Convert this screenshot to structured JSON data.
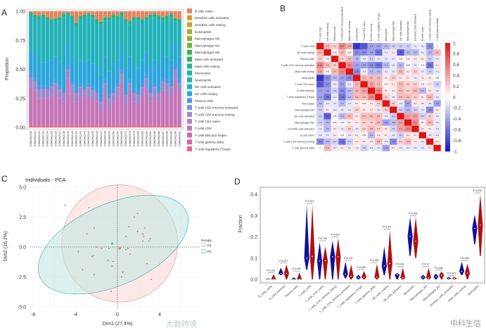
{
  "chart_data": [
    {
      "panel": "A",
      "type": "bar",
      "stacked": true,
      "ylabel": "Proportion",
      "ylim": [
        0,
        1
      ],
      "yticks": [
        "0.00",
        "0.25",
        "0.50",
        "0.75",
        "1.00"
      ],
      "categories": [
        "GSM1902130",
        "GSM1902131",
        "GSM1902132",
        "GSM1902133",
        "GSM1902134",
        "GSM1902135",
        "GSM1902136",
        "GSM1902137",
        "GSM1902138",
        "GSM1902139",
        "GSM1902140",
        "GSM1902141",
        "GSM1902142",
        "GSM1902143",
        "GSM1902144",
        "GSM1902145",
        "GSM1902146",
        "GSM1902147",
        "GSM1902148",
        "GSM1902149",
        "GSM1902150",
        "GSM1902151",
        "GSM1902155",
        "GSM1902177",
        "GSM1902178",
        "GSM1902179",
        "GSM1902180",
        "GSM1902182",
        "GSM1902183",
        "GSM1902184",
        "GSM1902185",
        "GSM1902186",
        "GSM1902187",
        "GSM1902188",
        "GSM1902189",
        "GSM1902190",
        "GSM1902191"
      ],
      "legend": [
        {
          "name": "B cells naive",
          "color": "#E8845C"
        },
        {
          "name": "Dendritic cells activated",
          "color": "#D99A2B"
        },
        {
          "name": "Dendritic cells resting",
          "color": "#C9A229"
        },
        {
          "name": "Eosinophils",
          "color": "#B5A92E"
        },
        {
          "name": "Macrophages M0",
          "color": "#98B033"
        },
        {
          "name": "Macrophages M1",
          "color": "#6FB63E"
        },
        {
          "name": "Macrophages M2",
          "color": "#3BB54A"
        },
        {
          "name": "Mast cells activated",
          "color": "#2BB572"
        },
        {
          "name": "Mast cells resting",
          "color": "#22B48E"
        },
        {
          "name": "Monocytes",
          "color": "#20B4A5"
        },
        {
          "name": "Neutrophils",
          "color": "#1FB3BA"
        },
        {
          "name": "NK cells activated",
          "color": "#22AED0"
        },
        {
          "name": "NK cells resting",
          "color": "#2AA5DE"
        },
        {
          "name": "Plasma cells",
          "color": "#4A9AE0"
        },
        {
          "name": "T cells CD4 memory activated",
          "color": "#7F92D8"
        },
        {
          "name": "T cells CD4 memory resting",
          "color": "#9C88CC"
        },
        {
          "name": "T cells CD4 naive",
          "color": "#B47FC4"
        },
        {
          "name": "T cells CD8",
          "color": "#C675BA"
        },
        {
          "name": "T cells follicular helper",
          "color": "#D46AAE"
        },
        {
          "name": "T cells gamma delta",
          "color": "#E063A0"
        },
        {
          "name": "T cells regulatory (Tregs)",
          "color": "#E8678E"
        }
      ],
      "series": [
        {
          "name": "T cells regulatory (Tregs)",
          "values": 0.02
        },
        {
          "name": "T cells CD8",
          "values": [
            0.33,
            0.3,
            0.23,
            0.23,
            0.23,
            0.25,
            0.28,
            0.23,
            0.2,
            0.4,
            0.27,
            0.2,
            0.25,
            0.23,
            0.25,
            0.22,
            0.2,
            0.12,
            0.28,
            0.15,
            0.2,
            0.25,
            0.37,
            0.18,
            0.28,
            0.2,
            0.18,
            0.25,
            0.32,
            0.2,
            0.25,
            0.2,
            0.3,
            0.28,
            0.25,
            0.4,
            0.28
          ]
        },
        {
          "name": "T cells CD4 memory resting",
          "values": 0.08
        },
        {
          "name": "Plasma cells",
          "values": 0.03
        },
        {
          "name": "NK cells resting",
          "values": 0.2
        },
        {
          "name": "Neutrophils",
          "values": [
            0.3,
            0.31,
            0.37,
            0.38,
            0.36,
            0.32,
            0.3,
            0.36,
            0.42,
            0.23,
            0.33,
            0.34,
            0.35,
            0.38,
            0.37,
            0.39,
            0.37,
            0.43,
            0.31,
            0.44,
            0.41,
            0.35,
            0.26,
            0.39,
            0.28,
            0.39,
            0.41,
            0.32,
            0.27,
            0.41,
            0.37,
            0.4,
            0.29,
            0.32,
            0.37,
            0.18,
            0.29
          ]
        },
        {
          "name": "Mast cells resting",
          "values": 0.03
        },
        {
          "name": "B cells naive",
          "values": [
            0.01,
            0.03,
            0.04,
            0.03,
            0.05,
            0.07,
            0.06,
            0.05,
            0.02,
            0.01,
            0.04,
            0.1,
            0.04,
            0.03,
            0.02,
            0.03,
            0.07,
            0.09,
            0.05,
            0.05,
            0.03,
            0.04,
            0.01,
            0.07,
            0.08,
            0.05,
            0.05,
            0.07,
            0.05,
            0.03,
            0.02,
            0.04,
            0.05,
            0.04,
            0.02,
            0.06,
            0.07
          ]
        }
      ]
    },
    {
      "panel": "B",
      "type": "heatmap",
      "zlim": [
        -1,
        1
      ],
      "colorbar_ticks": [
        "1",
        "0.8",
        "0.6",
        "0.4",
        "0.2",
        "0",
        "-0.2",
        "-0.4",
        "-0.6",
        "-0.8",
        "-1"
      ],
      "labels": [
        "T Cells CD8",
        "NK cells resting",
        "Plasma cells",
        "T cells CD4 memory activated",
        "Mast cells resting",
        "Neutrophils",
        "T cells CD4 naive",
        "B cells memory",
        "T cells regulatory (Tregs)",
        "Monocytes",
        "Macrophages M0",
        "NK cells activated",
        "Macrophages M2",
        "Dendritic cells activated",
        "B cells naive",
        "T cells CD4 memory resting",
        "T cells gamma delta"
      ],
      "colors": {
        "low": "#1414C8",
        "mid": "#FFFFFF",
        "high": "#E01414"
      },
      "matrix": [
        [
          1,
          0.3,
          0.2,
          0.52,
          0.35,
          -0.85,
          -0.7,
          -0.4,
          -0.4,
          -0.3,
          -0.2,
          -0.2,
          -0.2,
          -0.1,
          -0.1,
          -0.5,
          0
        ],
        [
          0.3,
          1,
          0.05,
          0.3,
          0.05,
          -0.5,
          -0.5,
          -0.4,
          -0.6,
          -0.1,
          0.1,
          -0.7,
          -0.3,
          -0.3,
          -0.1,
          -0.3,
          0.3
        ],
        [
          0.2,
          0.05,
          1,
          0.2,
          0.3,
          -0.3,
          -0.1,
          -0.2,
          -0.1,
          -0.1,
          -0.1,
          0.05,
          0.05,
          0.1,
          0.1,
          -0.2,
          -0.1
        ],
        [
          0.52,
          0.3,
          0.2,
          1,
          0.5,
          -0.4,
          -0.4,
          -0.5,
          -0.6,
          -0.3,
          -0.1,
          -0.3,
          -0.04,
          -0.1,
          -0.01,
          -0.6,
          0.1
        ],
        [
          0.35,
          0.05,
          0.3,
          0.5,
          1,
          -0.5,
          -0.1,
          -0.3,
          -0.3,
          -0.1,
          -0.1,
          0.3,
          0.1,
          0.2,
          -0.1,
          -0.2,
          -0.1
        ],
        [
          -0.85,
          -0.5,
          -0.3,
          -0.4,
          -0.5,
          1,
          0.3,
          0.3,
          0.3,
          0.1,
          0.2,
          0.1,
          0.1,
          -0.1,
          0.1,
          0.1,
          0.05
        ],
        [
          -0.7,
          -0.5,
          -0.1,
          -0.4,
          -0.1,
          0.3,
          1,
          0.4,
          0.3,
          0.05,
          0.1,
          0.3,
          0.2,
          0.2,
          0.05,
          0.1,
          -0.2
        ],
        [
          -0.4,
          -0.4,
          -0.2,
          -0.5,
          -0.3,
          0.3,
          0.4,
          1,
          0.5,
          0.1,
          0.1,
          0.3,
          0.2,
          0.3,
          -0.3,
          0.1,
          -0.1
        ],
        [
          -0.4,
          -0.6,
          -0.1,
          -0.6,
          -0.3,
          0.3,
          0.3,
          0.5,
          1,
          0.2,
          -0.1,
          0.3,
          0.3,
          0.2,
          0.1,
          0.3,
          -0.1
        ],
        [
          -0.3,
          -0.1,
          -0.1,
          -0.3,
          -0.1,
          0.1,
          0.05,
          0.1,
          0.2,
          1,
          0.2,
          -0.1,
          -0.4,
          0.1,
          0.1,
          -0.1,
          -0.4
        ],
        [
          -0.2,
          0.1,
          -0.1,
          -0.1,
          -0.1,
          0.2,
          0.1,
          0.1,
          -0.1,
          0.2,
          1,
          -0.2,
          -0.3,
          -0.2,
          -0.1,
          -0.5,
          0.1
        ],
        [
          -0.2,
          -0.7,
          0.05,
          -0.3,
          0.3,
          0.1,
          0.3,
          0.3,
          0.3,
          -0.1,
          -0.2,
          1,
          0.4,
          0.4,
          -0.2,
          0.2,
          -0.1
        ],
        [
          -0.2,
          -0.3,
          0.05,
          -0.04,
          0.1,
          0.1,
          0.2,
          0.2,
          0.3,
          -0.4,
          -0.3,
          0.4,
          1,
          0.5,
          0.1,
          0.3,
          -0.1
        ],
        [
          -0.1,
          -0.3,
          0.1,
          -0.1,
          0.2,
          -0.1,
          0.2,
          0.3,
          0.2,
          0.1,
          -0.2,
          0.4,
          0.5,
          1,
          0.1,
          0.1,
          -0.1
        ],
        [
          -0.1,
          -0.1,
          0.1,
          -0.01,
          -0.1,
          0.1,
          0.05,
          -0.3,
          0.1,
          0.1,
          -0.1,
          -0.2,
          0.1,
          0.1,
          1,
          -0.1,
          -0.1
        ],
        [
          -0.5,
          -0.3,
          -0.2,
          -0.6,
          -0.2,
          0.1,
          0.1,
          0.1,
          0.3,
          -0.1,
          -0.5,
          0.2,
          0.3,
          0.1,
          -0.1,
          1,
          0.1
        ],
        [
          0,
          0.3,
          -0.1,
          0.1,
          -0.1,
          0.05,
          -0.2,
          -0.1,
          -0.1,
          -0.4,
          0.1,
          -0.1,
          -0.1,
          -0.1,
          -0.1,
          0.1,
          1
        ]
      ]
    },
    {
      "panel": "C",
      "type": "scatter",
      "title": "Individuals - PCA",
      "xlabel": "Dim1 (27.4%)",
      "ylabel": "Dim2 (16.2%)",
      "xticks": [
        "-8",
        "-4",
        "0",
        "4"
      ],
      "yticks": [
        "5.0",
        "2.5",
        "0.0",
        "-2.5",
        "-5.0"
      ],
      "xlim": [
        -8.3,
        7.8
      ],
      "ylim": [
        -5.2,
        5.2
      ],
      "legend_title": "Groups",
      "groups": [
        {
          "name": "AS",
          "color": "#E8908A",
          "fill": "#F8D6D3",
          "mean": [
            0.2,
            -0.1
          ],
          "ellipse": {
            "center": [
              0.2,
              0.3
            ],
            "semi_axes": [
              5.5,
              4.9
            ],
            "angle": -10
          },
          "points": [
            [
              -5.0,
              3.5
            ],
            [
              -2.7,
              3.3
            ],
            [
              1.9,
              2.8
            ],
            [
              1.6,
              2.5
            ],
            [
              -2.2,
              1.6
            ],
            [
              1.1,
              1.7
            ],
            [
              2.6,
              1.6
            ],
            [
              1.9,
              1.3
            ],
            [
              -2.9,
              1.1
            ],
            [
              0.8,
              0.9
            ],
            [
              2.4,
              1.1
            ],
            [
              2.5,
              0.9
            ],
            [
              3.1,
              0.7
            ],
            [
              2.4,
              0.5
            ],
            [
              3.0,
              0.5
            ],
            [
              -2.0,
              0.0
            ],
            [
              -1.5,
              -0.1
            ],
            [
              -0.8,
              -0.1
            ],
            [
              1.0,
              -0.1
            ],
            [
              0.8,
              -0.2
            ],
            [
              -3.7,
              -0.4
            ],
            [
              1.2,
              -0.6
            ],
            [
              -2.3,
              -0.7
            ],
            [
              -2.4,
              -0.8
            ],
            [
              -0.9,
              -1.1
            ],
            [
              -0.4,
              -1.2
            ],
            [
              2.8,
              -1.4
            ],
            [
              -0.5,
              -1.6
            ],
            [
              -3.3,
              -1.9
            ],
            [
              0.5,
              -2.1
            ],
            [
              -2.2,
              -2.3
            ],
            [
              0.4,
              -2.5
            ],
            [
              3.2,
              -2.7
            ],
            [
              -0.6,
              -3.7
            ]
          ]
        },
        {
          "name": "HC",
          "color": "#2AB0A0",
          "fill": "#BFE6E0",
          "mean": [
            -0.4,
            0.3
          ],
          "ellipse": {
            "center": [
              -0.4,
              0.2
            ],
            "semi_axes": [
              7.6,
              3.4
            ],
            "angle": 24
          },
          "points": [
            [
              -0.5,
              0.3
            ]
          ]
        }
      ]
    },
    {
      "panel": "D",
      "type": "violin",
      "ylabel": "Fraction",
      "ylim": [
        0,
        0.42
      ],
      "yticks": [
        "0.0",
        "0.1",
        "0.2",
        "0.3",
        "0.4"
      ],
      "group_colors": [
        "#10109A",
        "#B01010"
      ],
      "categories": [
        "B_cells_naive",
        "B_cells_memory",
        "Plasma_cells",
        "T_cells_CD8",
        "T_cells_CD4_naive",
        "T_cells_CD4_memory_resting",
        "T_cells_CD4_memory_activated",
        "T_cells_regulatory_(Tregs)",
        "T_cells_gamma_delta",
        "NK_cells_resting",
        "NK_cells_activated",
        "Monocytes",
        "Macrophages_M0",
        "Macrophages_M2",
        "Dendritic_cells_activated",
        "Mast_cells_resting",
        "Neutrophils"
      ],
      "pvalues": [
        "P=0.313",
        "P=0.873",
        "P=0.394",
        "P=0.371",
        "P=0.798",
        "P=0.837",
        "P=0.224",
        "P=0.589",
        "P=0.159",
        "P=0.371",
        "P=0.082",
        "P=0.428",
        "P=0.27",
        "P=0.462",
        "P=0.573",
        "P=0.169",
        "P=0.576"
      ],
      "group1": [
        [
          0,
          0.005,
          0
        ],
        [
          0.02,
          0.055,
          0.028
        ],
        [
          0,
          0.01,
          0
        ],
        [
          0.045,
          0.35,
          0.1
        ],
        [
          0,
          0.175,
          0.087
        ],
        [
          0,
          0.182,
          0.106
        ],
        [
          0.005,
          0.083,
          0.025
        ],
        [
          0,
          0.022,
          0.01
        ],
        [
          0,
          0,
          0
        ],
        [
          0.02,
          0.155,
          0.063
        ],
        [
          0,
          0.03,
          0.022
        ],
        [
          0.11,
          0.293,
          0.203
        ],
        [
          0,
          0.022,
          0.01
        ],
        [
          0,
          0.028,
          0.013
        ],
        [
          0,
          0.012,
          0.005
        ],
        [
          0.02,
          0.083,
          0.038
        ],
        [
          0.165,
          0.305,
          0.24
        ]
      ],
      "group2": [
        [
          0,
          0.025,
          0
        ],
        [
          0,
          0.07,
          0.028
        ],
        [
          0,
          0.033,
          0
        ],
        [
          0,
          0.35,
          0.108
        ],
        [
          0,
          0.155,
          0.088
        ],
        [
          0,
          0.193,
          0.106
        ],
        [
          0,
          0.07,
          0.015
        ],
        [
          0,
          0.04,
          0.01
        ],
        [
          0,
          0.073,
          0.01
        ],
        [
          0,
          0.23,
          0.075
        ],
        [
          0,
          0.055,
          0.008
        ],
        [
          0.1,
          0.293,
          0.18
        ],
        [
          0,
          0.055,
          0.008
        ],
        [
          0,
          0.037,
          0.02
        ],
        [
          0,
          0.012,
          0.005
        ],
        [
          0,
          0.073,
          0.03
        ],
        [
          0.11,
          0.4,
          0.255
        ]
      ]
    }
  ],
  "panels": {
    "a": "A",
    "b": "B",
    "c": "C",
    "d": "D"
  },
  "watermarks": {
    "left": "大数跨境",
    "right": "中科生信"
  }
}
